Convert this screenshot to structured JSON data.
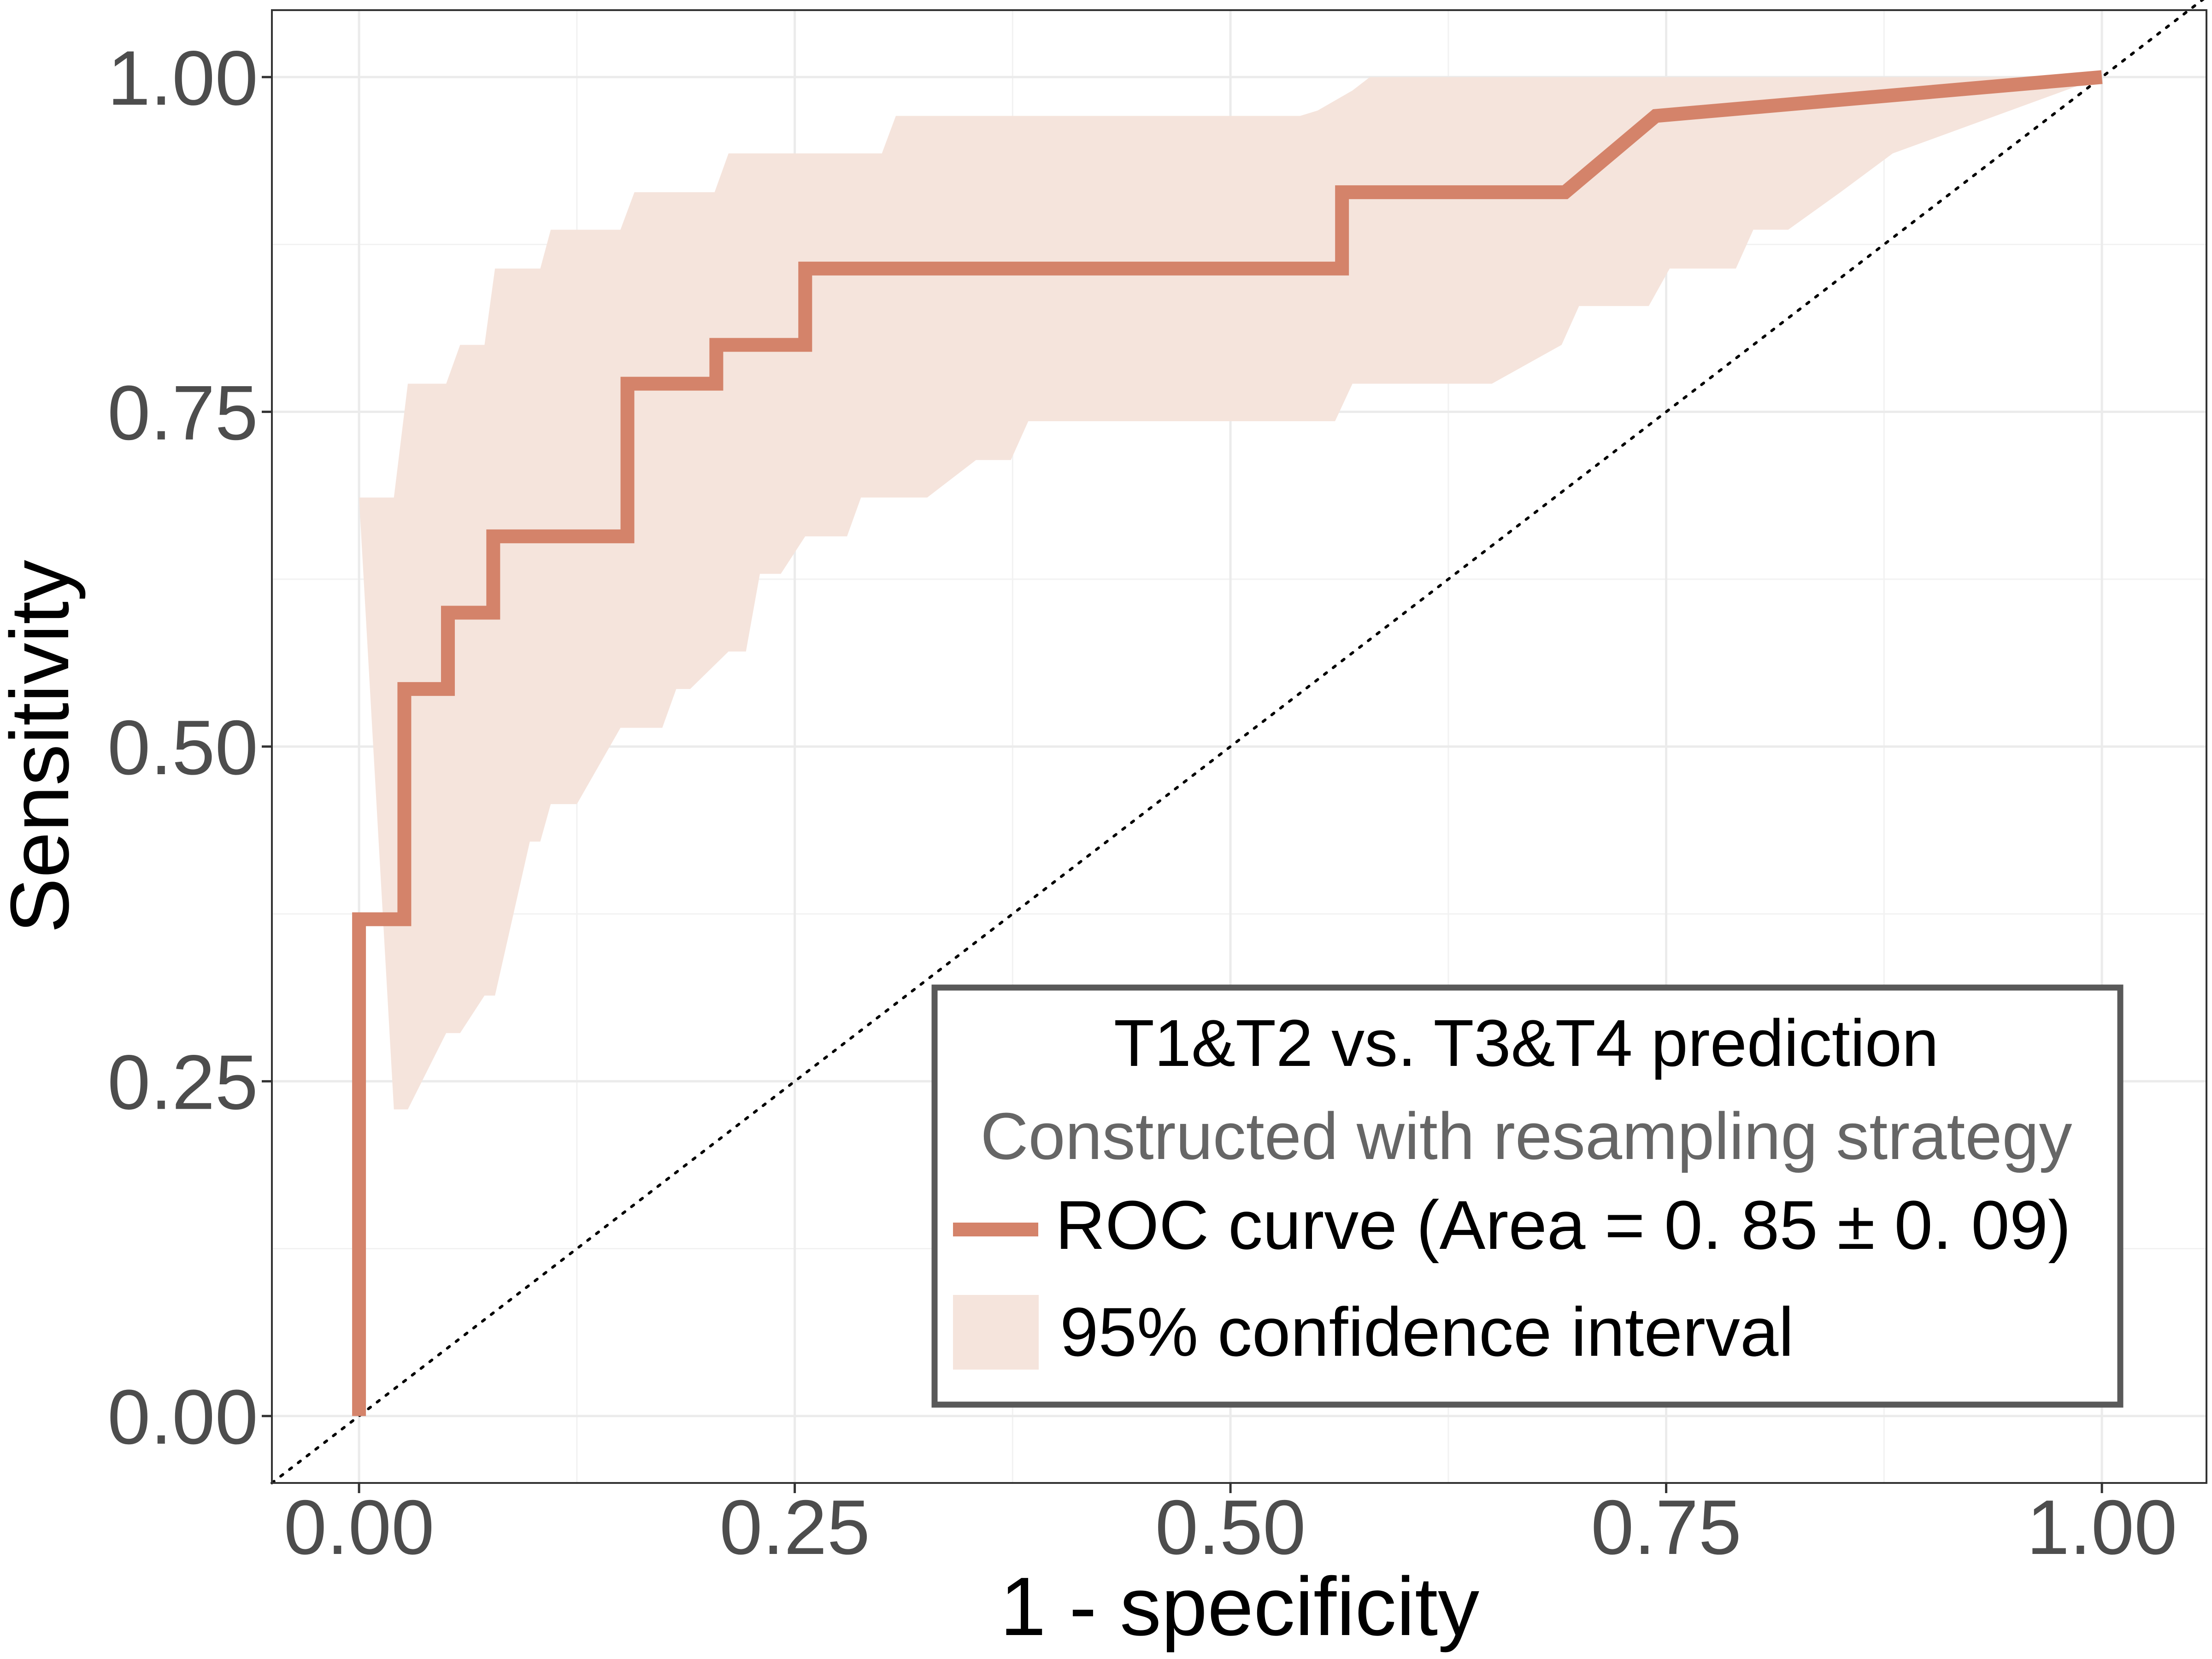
{
  "chart_data": {
    "type": "line",
    "xlabel": "1 - specificity",
    "ylabel": "Sensitivity",
    "xlim": [
      -0.05,
      1.06
    ],
    "ylim": [
      -0.05,
      1.05
    ],
    "x_ticks": [
      0,
      0.25,
      0.5,
      0.75,
      1
    ],
    "x_tick_labels": [
      "0.00",
      "0.25",
      "0.50",
      "0.75",
      "1.00"
    ],
    "y_ticks": [
      0,
      0.25,
      0.5,
      0.75,
      1
    ],
    "y_tick_labels": [
      "0.00",
      "0.25",
      "0.50",
      "0.75",
      "1.00"
    ],
    "grid": true,
    "reference_line": {
      "type": "diagonal",
      "style": "dotted",
      "from": [
        -0.05,
        -0.05
      ],
      "to": [
        1.06,
        1.06
      ]
    },
    "series": [
      {
        "name": "ROC curve (Area = 0. 85 ± 0. 09)",
        "color": "#d4836a",
        "x": [
          0.0,
          0.0,
          0.026,
          0.026,
          0.051,
          0.051,
          0.077,
          0.077,
          0.154,
          0.154,
          0.205,
          0.205,
          0.256,
          0.256,
          0.564,
          0.564,
          0.692,
          0.744,
          1.0
        ],
        "y": [
          0.0,
          0.371,
          0.371,
          0.543,
          0.543,
          0.6,
          0.6,
          0.657,
          0.657,
          0.771,
          0.771,
          0.8,
          0.8,
          0.857,
          0.857,
          0.914,
          0.914,
          0.971,
          1.0
        ]
      }
    ],
    "confidence_band": {
      "name": "95% confidence interval",
      "color": "#f5e4dc",
      "upper_x": [
        0.0,
        0.02,
        0.028,
        0.05,
        0.058,
        0.072,
        0.078,
        0.083,
        0.098,
        0.104,
        0.11,
        0.15,
        0.158,
        0.196,
        0.204,
        0.212,
        0.3,
        0.308,
        0.54,
        0.55,
        0.57,
        0.58,
        1.0
      ],
      "upper_y": [
        0.686,
        0.686,
        0.771,
        0.771,
        0.8,
        0.8,
        0.857,
        0.857,
        0.857,
        0.857,
        0.886,
        0.886,
        0.914,
        0.914,
        0.914,
        0.943,
        0.943,
        0.971,
        0.971,
        0.975,
        0.99,
        1.0,
        1.0
      ],
      "lower_x": [
        0.02,
        0.028,
        0.05,
        0.058,
        0.072,
        0.078,
        0.098,
        0.104,
        0.11,
        0.125,
        0.15,
        0.158,
        0.174,
        0.182,
        0.19,
        0.212,
        0.222,
        0.23,
        0.242,
        0.256,
        0.266,
        0.28,
        0.288,
        0.316,
        0.326,
        0.354,
        0.374,
        0.384,
        0.41,
        0.42,
        0.56,
        0.57,
        0.64,
        0.65,
        0.69,
        0.7,
        0.74,
        0.752,
        0.77,
        0.775,
        0.79,
        0.8,
        0.82,
        0.85,
        0.88,
        1.0
      ],
      "lower_y": [
        0.229,
        0.229,
        0.286,
        0.286,
        0.314,
        0.314,
        0.429,
        0.429,
        0.457,
        0.457,
        0.514,
        0.514,
        0.514,
        0.543,
        0.543,
        0.571,
        0.571,
        0.629,
        0.629,
        0.657,
        0.657,
        0.657,
        0.686,
        0.686,
        0.686,
        0.714,
        0.714,
        0.743,
        0.743,
        0.743,
        0.743,
        0.771,
        0.771,
        0.771,
        0.8,
        0.829,
        0.829,
        0.857,
        0.857,
        0.857,
        0.857,
        0.886,
        0.886,
        0.914,
        0.943,
        1.0
      ]
    },
    "legend": {
      "position": "bottom-right",
      "title": "T1&T2 vs. T3&T4 prediction",
      "subtitle": "Constructed with resampling strategy",
      "items": [
        {
          "label": "ROC curve (Area = 0. 85 ± 0. 09)",
          "kind": "line",
          "color": "#d4836a"
        },
        {
          "label": "95% confidence interval",
          "kind": "fill",
          "color": "#f5e4dc"
        }
      ]
    }
  }
}
